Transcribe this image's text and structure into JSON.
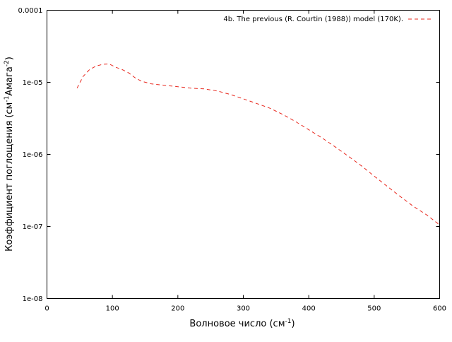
{
  "chart_data": {
    "type": "line",
    "xlabel": "Волновое число (см",
    "xlabel_sup": "-1",
    "xlabel_end": ")",
    "ylabel_parts": [
      "Коэффициент поглощения (см",
      "-1",
      "Амага",
      "-2",
      ")"
    ],
    "x_ticks": [
      0,
      100,
      200,
      300,
      400,
      500,
      600
    ],
    "x_tick_labels": [
      "0",
      "100",
      "200",
      "300",
      "400",
      "500",
      "600"
    ],
    "y_ticks": [
      1e-08,
      1e-07,
      1e-06,
      1e-05,
      0.0001
    ],
    "y_tick_labels": [
      "1e-08",
      "1e-07",
      "1e-06",
      "1e-05",
      "0.0001"
    ],
    "xlim": [
      0,
      600
    ],
    "ylim": [
      1e-08,
      0.0001
    ],
    "y_scale": "log",
    "grid": false,
    "legend_position": "top-right",
    "series": [
      {
        "name": "4b. The previous (R. Courtin (1988)) model (170K).",
        "color": "#e8281e",
        "line_style": "dashed",
        "x": [
          46,
          55,
          65,
          75,
          85,
          95,
          105,
          115,
          125,
          135,
          145,
          160,
          180,
          200,
          220,
          240,
          260,
          280,
          300,
          320,
          340,
          360,
          380,
          400,
          420,
          440,
          460,
          480,
          500,
          520,
          540,
          560,
          580,
          600
        ],
        "y": [
          8.3e-06,
          1.2e-05,
          1.5e-05,
          1.68e-05,
          1.78e-05,
          1.8e-05,
          1.62e-05,
          1.5e-05,
          1.35e-05,
          1.15e-05,
          1.03e-05,
          9.5e-06,
          9.1e-06,
          8.7e-06,
          8.3e-06,
          8.1e-06,
          7.6e-06,
          6.8e-06,
          5.9e-06,
          5.1e-06,
          4.4e-06,
          3.6e-06,
          2.85e-06,
          2.2e-06,
          1.7e-06,
          1.28e-06,
          9.5e-07,
          7e-07,
          5e-07,
          3.6e-07,
          2.6e-07,
          1.9e-07,
          1.45e-07,
          1.05e-07
        ]
      }
    ]
  }
}
